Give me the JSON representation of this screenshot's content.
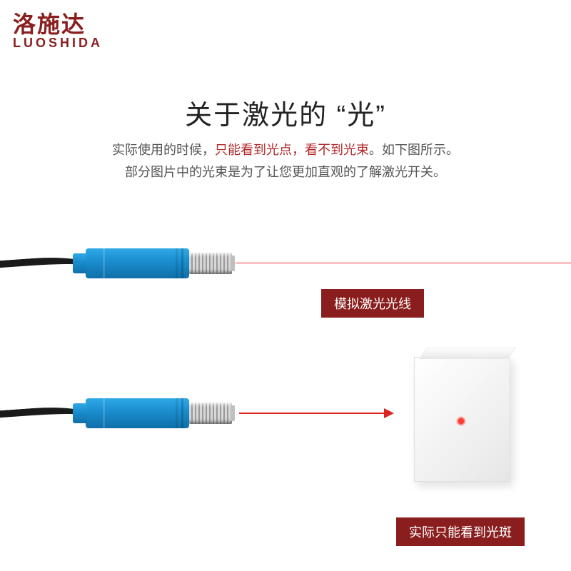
{
  "logo": {
    "cn": "洛施达",
    "en": "LUOSHIDA"
  },
  "title": "关于激光的 “光”",
  "desc": {
    "pre": "实际使用的时候，",
    "hl1": "只能看到光点，",
    "hl2": "看不到光束",
    "post1": "。如下图所示。",
    "line2": "部分图片中的光束是为了让您更加直观的了解激光开关。"
  },
  "labels": {
    "simulated": "模拟激光光线",
    "actual": "实际只能看到光斑"
  },
  "colors": {
    "brand": "#8a1e1e",
    "laser": "#e33",
    "sensor_body": "#1b8fd0"
  }
}
